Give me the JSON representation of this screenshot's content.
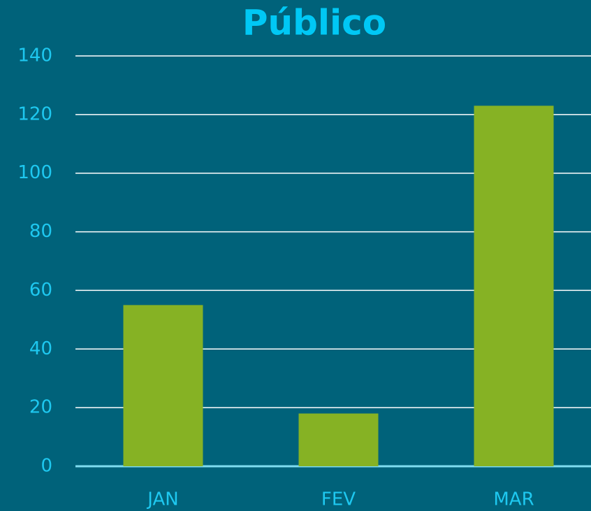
{
  "chart_data": {
    "type": "bar",
    "title": "Público",
    "categories": [
      "JAN",
      "FEV",
      "MAR"
    ],
    "values": [
      55,
      18,
      123
    ],
    "color": "#86b224",
    "ylim": [
      0,
      140
    ],
    "yticks": [
      0,
      20,
      40,
      60,
      80,
      100,
      120,
      140
    ],
    "grid": true
  }
}
